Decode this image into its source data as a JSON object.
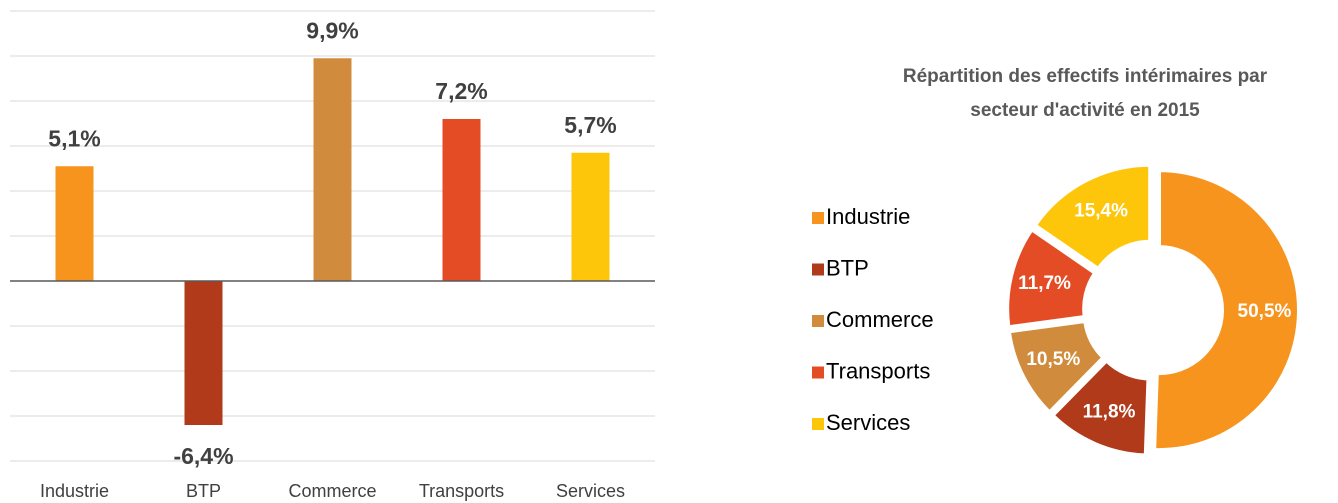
{
  "chart_data": [
    {
      "type": "bar",
      "categories": [
        "Industrie",
        "BTP",
        "Commerce",
        "Transports",
        "Services"
      ],
      "values": [
        5.1,
        -6.4,
        9.9,
        7.2,
        5.7
      ],
      "value_labels": [
        "5,1%",
        "-6,4%",
        "9,9%",
        "7,2%",
        "5,7%"
      ],
      "colors": [
        "#f7941d",
        "#b03a1a",
        "#d08c3c",
        "#e44c25",
        "#fdc60a"
      ],
      "ylim": [
        -8,
        12
      ],
      "yticks": [
        -8,
        -6,
        -4,
        -2,
        0,
        2,
        4,
        6,
        8,
        10,
        12
      ],
      "grid": true
    },
    {
      "type": "pie",
      "title": "Répartition des effectifs intérimaires par secteur d'activité en 2015",
      "categories": [
        "Industrie",
        "BTP",
        "Commerce",
        "Transports",
        "Services"
      ],
      "values": [
        50.5,
        11.8,
        10.5,
        11.7,
        15.4
      ],
      "value_labels": [
        "50,5%",
        "11,8%",
        "10,5%",
        "11,7%",
        "15,4%"
      ],
      "colors": [
        "#f7941d",
        "#b03a1a",
        "#d08c3c",
        "#e44c25",
        "#fdc60a"
      ],
      "legend": "left"
    }
  ]
}
